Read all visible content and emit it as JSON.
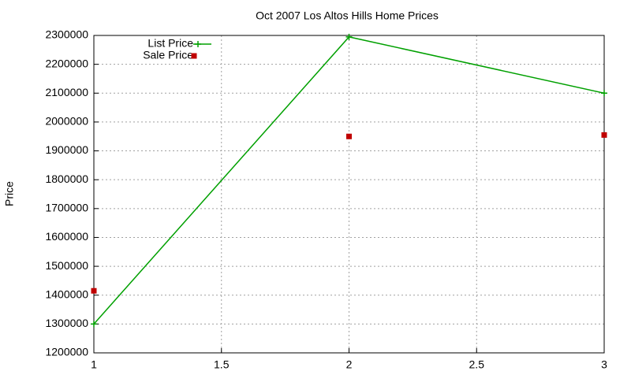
{
  "chart_data": {
    "type": "line",
    "title": "Oct 2007 Los Altos Hills Home Prices",
    "y_label": "Price",
    "x": [
      1,
      2,
      3
    ],
    "series": [
      {
        "name": "List Price",
        "color": "#00a000",
        "style": "linespoints",
        "values": [
          1300000,
          2295000,
          2100000
        ]
      },
      {
        "name": "Sale Price",
        "color": "#c00000",
        "style": "points",
        "values": [
          1415000,
          1950000,
          1955000
        ]
      }
    ],
    "xlim": [
      1,
      3
    ],
    "xticks": [
      1,
      1.5,
      2,
      2.5,
      3
    ],
    "ylim": [
      1200000,
      2300000
    ],
    "yticks": [
      1200000,
      1300000,
      1400000,
      1500000,
      1600000,
      1700000,
      1800000,
      1900000,
      2000000,
      2100000,
      2200000,
      2300000
    ],
    "grid": true,
    "legend": "top-left"
  }
}
